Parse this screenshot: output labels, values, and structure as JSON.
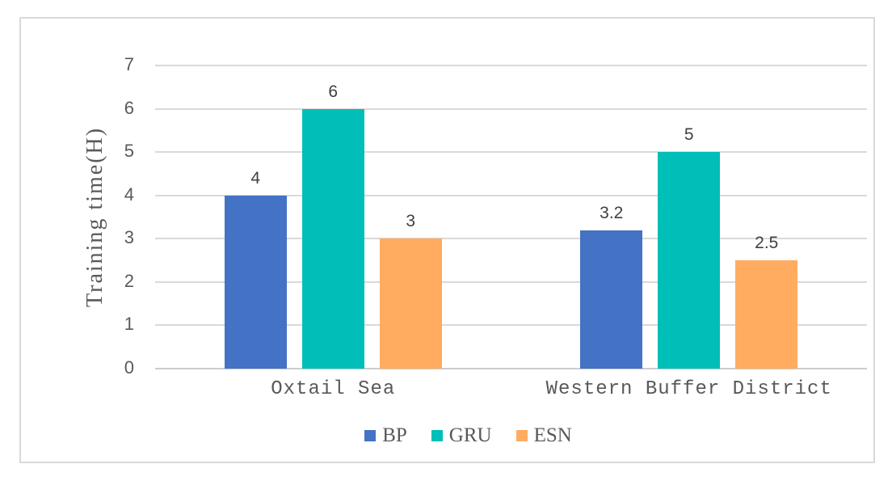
{
  "chart_data": {
    "type": "bar",
    "title": "",
    "categories": [
      "Oxtail Sea",
      "Western Buffer District"
    ],
    "series": [
      {
        "name": "BP",
        "color": "#4472C4",
        "values": [
          4,
          3.2
        ]
      },
      {
        "name": "GRU",
        "color": "#00BEB8",
        "values": [
          6,
          5
        ]
      },
      {
        "name": "ESN",
        "color": "#FFAC60",
        "values": [
          3,
          2.5
        ]
      }
    ],
    "xlabel": "",
    "ylabel": "Training time(H)",
    "ylim": [
      0,
      7
    ],
    "yticks": [
      0,
      1,
      2,
      3,
      4,
      5,
      6,
      7
    ],
    "grid": true,
    "value_labels": true,
    "legend_position": "bottom-center"
  },
  "colors": {
    "grid": "#D9D9D9",
    "axis_line": "#CCCCCC",
    "tick_text": "#595959",
    "value_text": "#404040",
    "category_text": "#595959",
    "legend_text": "#595959",
    "frame_border": "#D9D9D9",
    "background": "#FFFFFF"
  }
}
